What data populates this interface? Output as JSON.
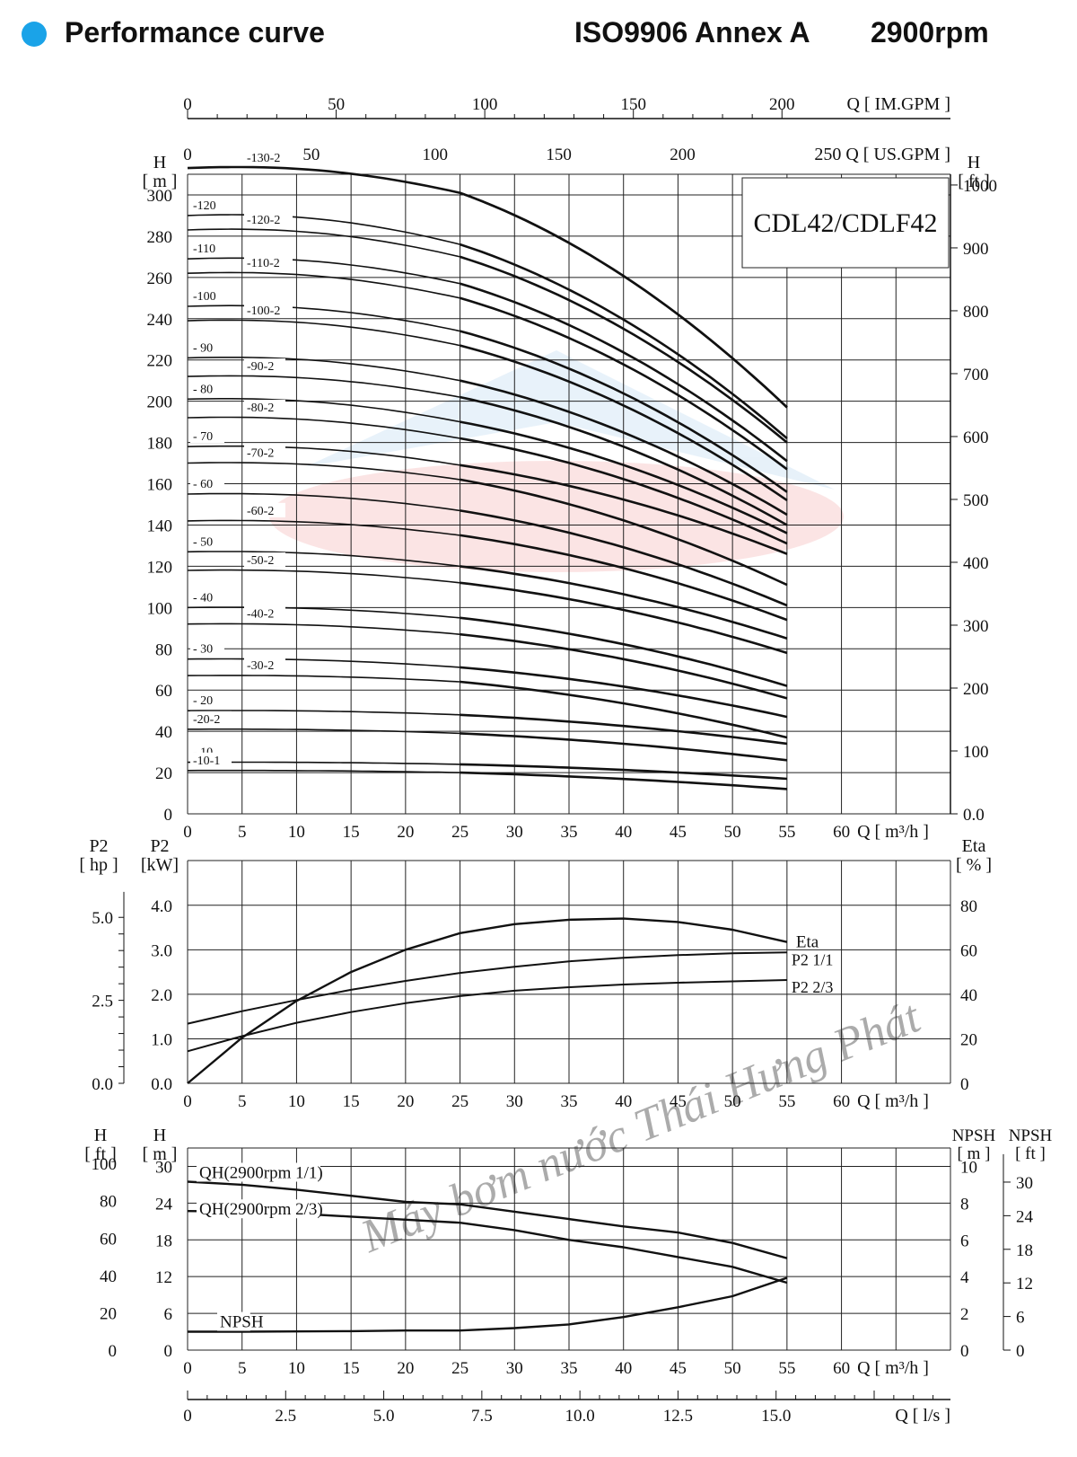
{
  "header": {
    "title": "Performance curve",
    "standard": "ISO9906 Annex A",
    "speed": "2900rpm",
    "dot_color": "#1aa3e8"
  },
  "model_label": "CDL42/CDLF42",
  "watermark": {
    "text": "Máy bơm nước Thái Hưng Phát",
    "color": "#e8a0a0"
  },
  "chart_data": [
    {
      "type": "line",
      "name": "qh",
      "top_axis_imgpm": {
        "label": "Q  [ IM.GPM ]",
        "ticks": [
          "0",
          "50",
          "100",
          "150",
          "200"
        ]
      },
      "top_axis_usgpm": {
        "label": "250 Q  [ US.GPM ]",
        "ticks": [
          "0",
          "50",
          "100",
          "150",
          "200"
        ]
      },
      "xlabel": "Q  [ m³/h ]",
      "x_ticks": [
        "0",
        "5",
        "10",
        "15",
        "20",
        "25",
        "30",
        "35",
        "40",
        "45",
        "50",
        "55",
        "60"
      ],
      "xlim": [
        0,
        70
      ],
      "ylabel": "H\n[ m ]",
      "ylim": [
        0,
        310
      ],
      "y_ticks": [
        "0",
        "20",
        "40",
        "60",
        "80",
        "100",
        "120",
        "140",
        "160",
        "180",
        "200",
        "220",
        "240",
        "260",
        "280",
        "300"
      ],
      "y2label": "H\n[ ft ]",
      "y2_ticks": [
        "0.0",
        "100",
        "200",
        "300",
        "400",
        "500",
        "600",
        "700",
        "800",
        "900",
        "1000"
      ],
      "series": [
        {
          "name": "-130-2",
          "H0": 313,
          "H25": 301,
          "H55": 197
        },
        {
          "name": "-120",
          "H0": 290,
          "H25": 276,
          "H55": 182
        },
        {
          "name": "-120-2",
          "H0": 283,
          "H25": 270,
          "H55": 180
        },
        {
          "name": "-110",
          "H0": 269,
          "H25": 257,
          "H55": 171
        },
        {
          "name": "-110-2",
          "H0": 262,
          "H25": 250,
          "H55": 167
        },
        {
          "name": "-100",
          "H0": 246,
          "H25": 234,
          "H55": 156
        },
        {
          "name": "-100-2",
          "H0": 239,
          "H25": 227,
          "H55": 152
        },
        {
          "name": "- 90",
          "H0": 221,
          "H25": 210,
          "H55": 145
        },
        {
          "name": "-90-2",
          "H0": 212,
          "H25": 202,
          "H55": 140
        },
        {
          "name": "- 80",
          "H0": 201,
          "H25": 190,
          "H55": 136
        },
        {
          "name": "-80-2",
          "H0": 192,
          "H25": 182,
          "H55": 131
        },
        {
          "name": "- 70",
          "H0": 178,
          "H25": 169,
          "H55": 126
        },
        {
          "name": "-70-2",
          "H0": 170,
          "H25": 162,
          "H55": 111
        },
        {
          "name": "- 60",
          "H0": 155,
          "H25": 147,
          "H55": 101
        },
        {
          "name": "-60-2",
          "H0": 142,
          "H25": 135,
          "H55": 94
        },
        {
          "name": "- 50",
          "H0": 127,
          "H25": 120,
          "H55": 85
        },
        {
          "name": "-50-2",
          "H0": 118,
          "H25": 112,
          "H55": 78
        },
        {
          "name": "- 40",
          "H0": 100,
          "H25": 95,
          "H55": 62
        },
        {
          "name": "-40-2",
          "H0": 92,
          "H25": 87,
          "H55": 56
        },
        {
          "name": "- 30",
          "H0": 75,
          "H25": 71,
          "H55": 47
        },
        {
          "name": "-30-2",
          "H0": 67,
          "H25": 64,
          "H55": 37
        },
        {
          "name": "- 20",
          "H0": 50,
          "H25": 48,
          "H55": 34
        },
        {
          "name": "-20-2",
          "H0": 41,
          "H25": 39,
          "H55": 26
        },
        {
          "name": "- 10",
          "H0": 25,
          "H25": 24,
          "H55": 17
        },
        {
          "name": "-10-1",
          "H0": 21,
          "H25": 20,
          "H55": 12
        }
      ]
    },
    {
      "type": "line",
      "name": "power",
      "xlabel": "Q  [ m³/h ]",
      "x_ticks": [
        "0",
        "5",
        "10",
        "15",
        "20",
        "25",
        "30",
        "35",
        "40",
        "45",
        "50",
        "55",
        "60"
      ],
      "xlim": [
        0,
        70
      ],
      "ylabel": "P2\n[kW]",
      "ylim": [
        0,
        4
      ],
      "y_ticks": [
        "0.0",
        "1.0",
        "2.0",
        "3.0",
        "4.0"
      ],
      "y_hp_label": "P2\n[ hp ]",
      "y_hp_ticks": [
        "0.0",
        "2.5",
        "5.0"
      ],
      "y2label": "Eta\n[ % ]",
      "y2_ticks": [
        "0",
        "20",
        "40",
        "60",
        "80"
      ],
      "series": [
        {
          "name": "Eta",
          "x": [
            0,
            5,
            10,
            15,
            20,
            25,
            30,
            35,
            40,
            45,
            50,
            55
          ],
          "y": [
            0,
            20.5,
            37,
            50,
            60,
            67.5,
            71.5,
            73.5,
            74,
            72.5,
            69,
            63.5
          ]
        },
        {
          "name": "P2  1/1",
          "x": [
            0,
            5,
            10,
            15,
            20,
            25,
            30,
            35,
            40,
            45,
            50,
            55
          ],
          "y": [
            1.34,
            1.62,
            1.87,
            2.1,
            2.3,
            2.48,
            2.62,
            2.74,
            2.82,
            2.88,
            2.92,
            2.94
          ]
        },
        {
          "name": "P2  2/3",
          "x": [
            0,
            5,
            10,
            15,
            20,
            25,
            30,
            35,
            40,
            45,
            50,
            55
          ],
          "y": [
            0.72,
            1.06,
            1.36,
            1.6,
            1.8,
            1.96,
            2.08,
            2.16,
            2.22,
            2.26,
            2.29,
            2.32
          ]
        }
      ]
    },
    {
      "type": "line",
      "name": "npsh",
      "xlabel": "Q  [ m³/h ]",
      "x_ticks": [
        "0",
        "5",
        "10",
        "15",
        "20",
        "25",
        "30",
        "35",
        "40",
        "45",
        "50",
        "55",
        "60"
      ],
      "xlim": [
        0,
        70
      ],
      "ylabel": "H\n[ m ]",
      "ylim": [
        0,
        30
      ],
      "y_ticks": [
        "0",
        "6",
        "12",
        "18",
        "24",
        "30"
      ],
      "y_ft_label": "H\n[ ft ]",
      "y_ft_ticks": [
        "0",
        "20",
        "40",
        "60",
        "80",
        "100"
      ],
      "y2label": "NPSH\n[ m ]",
      "y2_ticks": [
        "0",
        "2",
        "4",
        "6",
        "8",
        "10"
      ],
      "y3label": "NPSH\n[ ft ]",
      "y3_ticks": [
        "0",
        "6",
        "12",
        "18",
        "24",
        "30"
      ],
      "series": [
        {
          "name": "QH(2900rpm 1/1)",
          "x": [
            0,
            5,
            10,
            15,
            20,
            25,
            30,
            35,
            40,
            45,
            50,
            55
          ],
          "y": [
            27.5,
            27,
            26.2,
            25.2,
            24.2,
            23.8,
            22.6,
            21.4,
            20.2,
            19.2,
            17.5,
            15
          ]
        },
        {
          "name": "QH(2900rpm 2/3)",
          "x": [
            0,
            5,
            10,
            15,
            20,
            25,
            30,
            35,
            40,
            45,
            50,
            55
          ],
          "y": [
            22.7,
            22.6,
            22.3,
            21.8,
            21.3,
            20.8,
            19.6,
            18,
            16.8,
            15.2,
            13.6,
            11
          ]
        },
        {
          "name": "NPSH",
          "x": [
            0,
            5,
            10,
            15,
            20,
            25,
            30,
            35,
            40,
            45,
            50,
            55
          ],
          "y": [
            3,
            3,
            3.05,
            3.1,
            3.2,
            3.2,
            3.6,
            4.2,
            5.4,
            7,
            8.8,
            11.8
          ]
        }
      ],
      "bottom_axis_ls": {
        "label": "Q  [ l/s ]",
        "ticks": [
          "0",
          "2.5",
          "5.0",
          "7.5",
          "10.0",
          "12.5",
          "15.0"
        ]
      }
    }
  ]
}
